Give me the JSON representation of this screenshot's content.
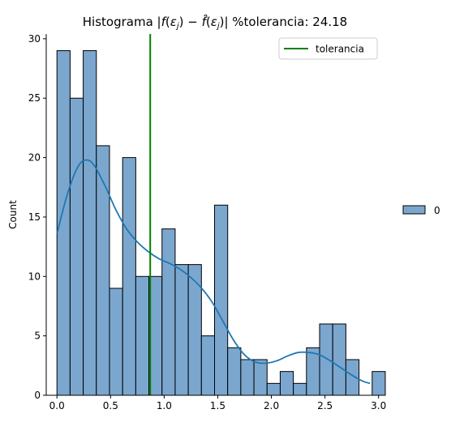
{
  "chart_data": {
    "type": "bar",
    "title": "Histograma |f(ε_j) − f̂(ε_j)| %tolerancia: 24.18",
    "xlabel": "",
    "ylabel": "Count",
    "xlim": [
      -0.1,
      3.04
    ],
    "ylim": [
      0,
      30.4
    ],
    "bin_width": 0.1225,
    "bin_start": 0.0,
    "xticks": [
      0.0,
      0.5,
      1.0,
      1.5,
      2.0,
      2.5,
      3.0
    ],
    "xtick_labels": [
      "0.0",
      "0.5",
      "1.0",
      "1.5",
      "2.0",
      "2.5",
      "3.0"
    ],
    "yticks": [
      0,
      5,
      10,
      15,
      20,
      25,
      30
    ],
    "ytick_labels": [
      "0",
      "5",
      "10",
      "15",
      "20",
      "25",
      "30"
    ],
    "series": [
      {
        "name": "0",
        "color": "#7ba7cf",
        "edge_color": "#000000",
        "counts": [
          29,
          25,
          29,
          21,
          9,
          20,
          10,
          10,
          14,
          11,
          11,
          5,
          16,
          4,
          3,
          3,
          1,
          2,
          1,
          4,
          6,
          6,
          3,
          0,
          2
        ]
      }
    ],
    "kde": {
      "color": "#1f77b4",
      "x": [
        0.0,
        0.1,
        0.2,
        0.28,
        0.35,
        0.45,
        0.55,
        0.65,
        0.75,
        0.85,
        0.95,
        1.05,
        1.15,
        1.25,
        1.35,
        1.45,
        1.55,
        1.65,
        1.75,
        1.85,
        1.95,
        2.05,
        2.15,
        2.25,
        2.35,
        2.45,
        2.55,
        2.65,
        2.75,
        2.85,
        2.92
      ],
      "y": [
        13.6,
        17.0,
        19.3,
        19.8,
        19.3,
        17.6,
        15.6,
        14.0,
        12.9,
        12.1,
        11.5,
        11.1,
        10.6,
        9.9,
        9.0,
        7.8,
        6.2,
        4.6,
        3.4,
        2.8,
        2.7,
        2.9,
        3.3,
        3.6,
        3.6,
        3.4,
        2.9,
        2.3,
        1.7,
        1.2,
        1.0
      ]
    },
    "tolerance_line": {
      "x": 0.87,
      "color": "#008000",
      "label": "tolerancia"
    },
    "legend_inside": {
      "position": "top-right",
      "entries": [
        "tolerancia"
      ]
    },
    "legend_outside": {
      "position": "center-right",
      "entries": [
        "0"
      ]
    },
    "grid": false
  }
}
